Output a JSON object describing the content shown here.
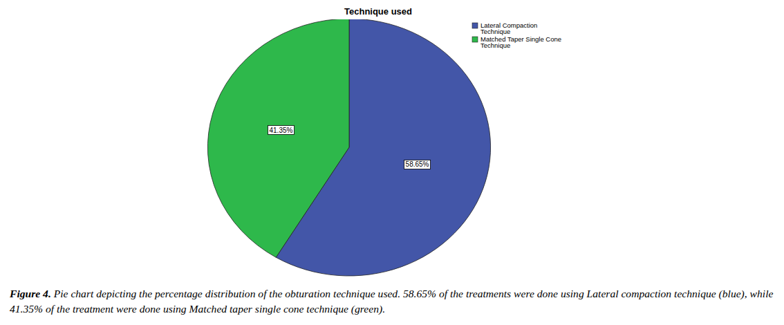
{
  "chart_data": {
    "type": "pie",
    "title": "Technique used",
    "categories": [
      "Lateral Compaction Technique",
      "Matched Taper Single Cone Technique"
    ],
    "values": [
      58.65,
      41.35
    ],
    "value_labels": [
      "58.65%",
      "41.35%"
    ],
    "colors": [
      "#4356a8",
      "#2eb84b"
    ],
    "data_labels": true,
    "legend": "top-right"
  },
  "figure_caption": {
    "label": "Figure 4.",
    "text": "Pie chart depicting the percentage distribution of the obturation technique used. 58.65% of the treatments were done using Lateral compaction technique (blue), while 41.35% of the treatment were done using Matched taper single cone technique (green)."
  }
}
